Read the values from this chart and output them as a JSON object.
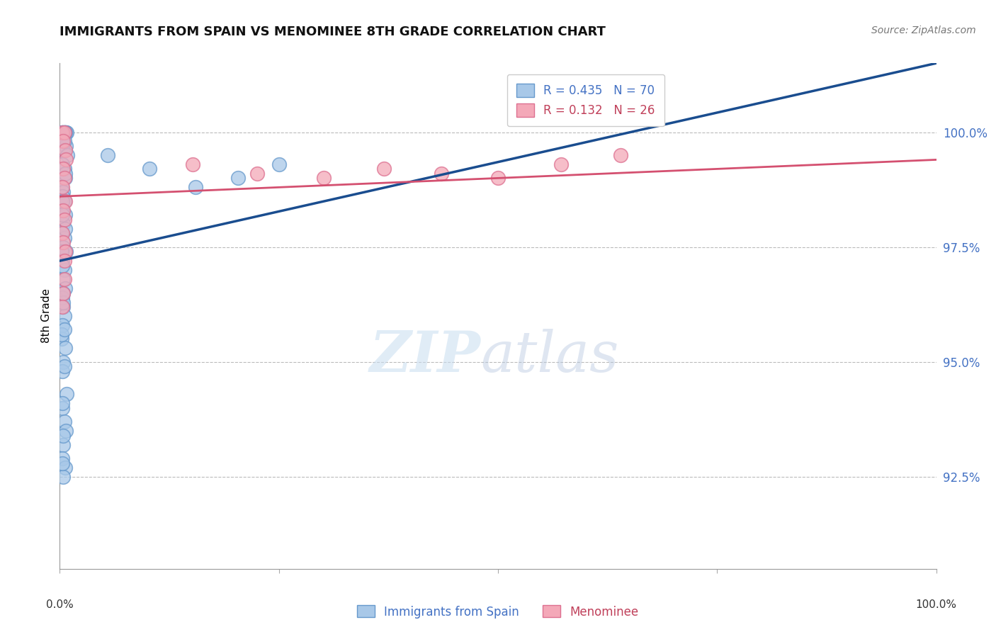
{
  "title": "IMMIGRANTS FROM SPAIN VS MENOMINEE 8TH GRADE CORRELATION CHART",
  "source": "Source: ZipAtlas.com",
  "ylabel": "8th Grade",
  "ytick_values": [
    92.5,
    95.0,
    97.5,
    100.0
  ],
  "xlim": [
    0,
    100
  ],
  "ylim": [
    90.5,
    101.5
  ],
  "blue_R": 0.435,
  "blue_N": 70,
  "pink_R": 0.132,
  "pink_N": 26,
  "blue_color": "#a8c8e8",
  "blue_edge": "#6699cc",
  "pink_color": "#f4a8b8",
  "pink_edge": "#dd7090",
  "blue_line_color": "#1a4d8f",
  "pink_line_color": "#d45070",
  "legend_label_blue": "Immigrants from Spain",
  "legend_label_pink": "Menominee",
  "blue_points_x": [
    0.3,
    0.5,
    0.7,
    0.4,
    0.6,
    0.8,
    0.2,
    0.3,
    0.5,
    0.4,
    0.6,
    0.3,
    0.7,
    0.4,
    0.9,
    0.3,
    0.5,
    0.6,
    0.2,
    0.4,
    0.3,
    0.5,
    0.2,
    0.6,
    0.4,
    0.3,
    0.5,
    0.4,
    0.7,
    0.3,
    0.5,
    0.4,
    0.6,
    0.3,
    0.4,
    0.5,
    0.3,
    0.2,
    0.6,
    0.4,
    0.3,
    5.5,
    10.2,
    15.5,
    20.3,
    25.0,
    0.8,
    0.3,
    0.5,
    0.7,
    0.4,
    0.3,
    0.6,
    0.4,
    0.5,
    0.3,
    0.6,
    0.3,
    0.4,
    0.2,
    0.5,
    0.3,
    0.4,
    0.3,
    0.5,
    0.6,
    0.3,
    0.2,
    0.4,
    0.5
  ],
  "blue_points_y": [
    100.0,
    100.0,
    100.0,
    100.0,
    100.0,
    100.0,
    100.0,
    100.0,
    100.0,
    100.0,
    100.0,
    99.8,
    99.7,
    99.6,
    99.5,
    99.3,
    99.2,
    99.0,
    98.8,
    98.7,
    98.6,
    98.5,
    98.3,
    98.2,
    98.0,
    97.8,
    97.7,
    97.5,
    97.4,
    97.2,
    97.0,
    96.8,
    96.6,
    96.4,
    96.2,
    96.0,
    95.8,
    95.5,
    95.3,
    95.0,
    94.8,
    99.5,
    99.2,
    98.8,
    99.0,
    99.3,
    94.3,
    94.0,
    93.7,
    93.5,
    93.2,
    92.9,
    92.7,
    92.5,
    99.8,
    98.5,
    97.9,
    97.1,
    96.3,
    95.6,
    94.9,
    94.1,
    93.4,
    92.8,
    100.0,
    99.1,
    98.2,
    97.4,
    96.5,
    95.7
  ],
  "pink_points_x": [
    0.3,
    0.5,
    0.4,
    0.6,
    0.7,
    0.4,
    0.5,
    0.3,
    0.6,
    0.4,
    0.5,
    0.3,
    0.4,
    0.6,
    0.5,
    15.2,
    22.5,
    30.1,
    37.0,
    43.5,
    50.0,
    57.2,
    64.0,
    0.5,
    0.4,
    0.3
  ],
  "pink_points_y": [
    100.0,
    100.0,
    99.8,
    99.6,
    99.4,
    99.2,
    99.0,
    98.8,
    98.5,
    98.3,
    98.1,
    97.8,
    97.6,
    97.4,
    97.2,
    99.3,
    99.1,
    99.0,
    99.2,
    99.1,
    99.0,
    99.3,
    99.5,
    96.8,
    96.5,
    96.2
  ],
  "blue_trendline_x": [
    0,
    100
  ],
  "blue_trendline_y": [
    97.2,
    101.5
  ],
  "pink_trendline_x": [
    0,
    100
  ],
  "pink_trendline_y": [
    98.6,
    99.4
  ]
}
